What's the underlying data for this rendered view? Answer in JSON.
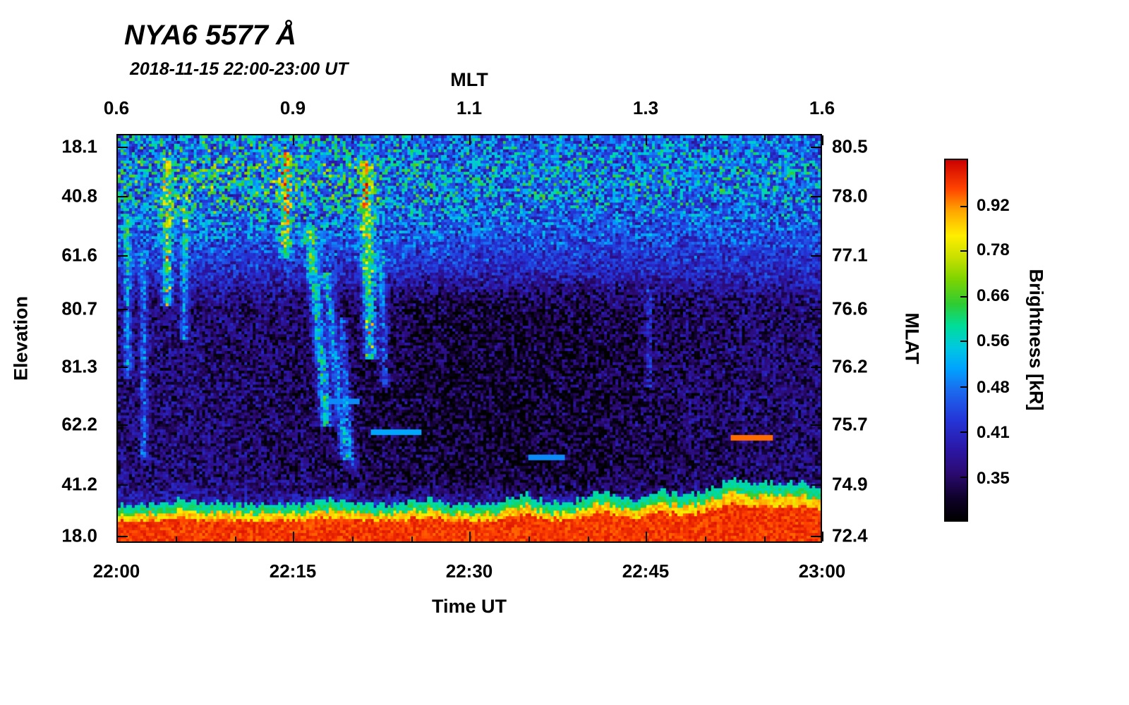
{
  "title": "NYA6 5577 Å",
  "subtitle": "2018-11-15 22:00-23:00 UT",
  "chart_data": {
    "type": "heatmap",
    "title": "NYA6 5577 Å",
    "subtitle": "2018-11-15 22:00-23:00 UT",
    "axes": {
      "bottom": {
        "label": "Time UT",
        "ticks": [
          {
            "label": "22:00",
            "pos": 0.0
          },
          {
            "label": "22:15",
            "pos": 0.25
          },
          {
            "label": "22:30",
            "pos": 0.5
          },
          {
            "label": "22:45",
            "pos": 0.75
          },
          {
            "label": "23:00",
            "pos": 1.0
          }
        ],
        "minor_divisions": 12
      },
      "top": {
        "label": "MLT",
        "ticks": [
          {
            "label": "0.6",
            "pos": 0.0
          },
          {
            "label": "0.9",
            "pos": 0.25
          },
          {
            "label": "1.1",
            "pos": 0.5
          },
          {
            "label": "1.3",
            "pos": 0.75
          },
          {
            "label": "1.6",
            "pos": 1.0
          }
        ],
        "minor_divisions": 12
      },
      "left": {
        "label": "Elevation",
        "ticks": [
          {
            "label": "18.1",
            "pos": 0.031
          },
          {
            "label": "40.8",
            "pos": 0.152
          },
          {
            "label": "61.6",
            "pos": 0.297
          },
          {
            "label": "80.7",
            "pos": 0.428
          },
          {
            "label": "81.3",
            "pos": 0.569
          },
          {
            "label": "62.2",
            "pos": 0.71
          },
          {
            "label": "41.2",
            "pos": 0.857
          },
          {
            "label": "18.0",
            "pos": 0.983
          }
        ]
      },
      "right": {
        "label": "MLAT",
        "ticks": [
          {
            "label": "80.5",
            "pos": 0.031
          },
          {
            "label": "78.0",
            "pos": 0.152
          },
          {
            "label": "77.1",
            "pos": 0.297
          },
          {
            "label": "76.6",
            "pos": 0.428
          },
          {
            "label": "76.2",
            "pos": 0.569
          },
          {
            "label": "75.7",
            "pos": 0.71
          },
          {
            "label": "74.9",
            "pos": 0.857
          },
          {
            "label": "72.4",
            "pos": 0.983
          }
        ]
      }
    },
    "colorbar": {
      "label": "Brightness [kR]",
      "scale": "log",
      "log_a": 0.777,
      "log_b": 0.935,
      "tick_labels": [
        {
          "label": "0.92",
          "pos": 0.13
        },
        {
          "label": "0.78",
          "pos": 0.252
        },
        {
          "label": "0.66",
          "pos": 0.379
        },
        {
          "label": "0.56",
          "pos": 0.503
        },
        {
          "label": "0.48",
          "pos": 0.631
        },
        {
          "label": "0.41",
          "pos": 0.755
        },
        {
          "label": "0.35",
          "pos": 0.881
        }
      ],
      "gradient_stops": [
        [
          0.0,
          "#000000"
        ],
        [
          0.06,
          "#0e0128"
        ],
        [
          0.13,
          "#2b0a70"
        ],
        [
          0.2,
          "#2b18a8"
        ],
        [
          0.28,
          "#2436d8"
        ],
        [
          0.36,
          "#1b6aee"
        ],
        [
          0.42,
          "#00a2ff"
        ],
        [
          0.48,
          "#00c8e0"
        ],
        [
          0.54,
          "#00dd99"
        ],
        [
          0.6,
          "#2ecc33"
        ],
        [
          0.67,
          "#7fd400"
        ],
        [
          0.73,
          "#c8e000"
        ],
        [
          0.79,
          "#ffee00"
        ],
        [
          0.86,
          "#ffa500"
        ],
        [
          0.92,
          "#ff4400"
        ],
        [
          1.0,
          "#cc0000"
        ]
      ]
    },
    "heatmap": {
      "grid": {
        "cols": 250,
        "rows": 145
      },
      "seed": 20181115,
      "base": 0.4,
      "noise": 0.1,
      "top_band": {
        "center": 0.1,
        "sigma": 0.12,
        "amp": 0.24
      },
      "top_band_boost": {
        "u": 0.18,
        "sigma": 0.16,
        "amp": 0.5
      },
      "mid_dark": {
        "w0": 0.3,
        "w1": 0.44,
        "w2": 0.84,
        "w3": 0.93,
        "u_center": 0.55,
        "u_sigma": 0.2,
        "amp": 0.05
      },
      "streaks": [
        {
          "u": 0.012,
          "w0": 0.2,
          "w1": 0.6,
          "width": 0.004,
          "amp": 0.2
        },
        {
          "u": 0.035,
          "w0": 0.28,
          "w1": 0.8,
          "width": 0.0035,
          "amp": 0.16
        },
        {
          "u": 0.068,
          "w0": 0.05,
          "w1": 0.42,
          "width": 0.005,
          "amp": 0.28,
          "spots": true
        },
        {
          "u": 0.093,
          "w0": 0.15,
          "w1": 0.5,
          "width": 0.004,
          "amp": 0.2
        },
        {
          "u": 0.238,
          "w0": 0.04,
          "w1": 0.3,
          "width": 0.005,
          "amp": 0.36,
          "spots": true
        },
        {
          "u": 0.272,
          "w0": 0.22,
          "w1": 0.72,
          "width": 0.006,
          "amp": 0.3,
          "tilt": 0.05
        },
        {
          "u": 0.296,
          "w0": 0.34,
          "w1": 0.8,
          "width": 0.005,
          "amp": 0.24,
          "tilt": 0.06
        },
        {
          "u": 0.318,
          "w0": 0.45,
          "w1": 0.82,
          "width": 0.004,
          "amp": 0.16,
          "tilt": 0.04
        },
        {
          "u": 0.352,
          "w0": 0.06,
          "w1": 0.55,
          "width": 0.006,
          "amp": 0.36,
          "spots": true,
          "tilt": 0.015
        },
        {
          "u": 0.374,
          "w0": 0.28,
          "w1": 0.62,
          "width": 0.004,
          "amp": 0.18,
          "tilt": 0.02
        },
        {
          "u": 0.757,
          "w0": 0.38,
          "w1": 0.62,
          "width": 0.003,
          "amp": 0.11
        }
      ],
      "dashes": [
        {
          "u0": 0.36,
          "u1": 0.43,
          "w": 0.735,
          "v": 0.52
        },
        {
          "u0": 0.585,
          "u1": 0.635,
          "w": 0.795,
          "v": 0.5
        },
        {
          "u0": 0.875,
          "u1": 0.935,
          "w": 0.745,
          "v": 0.95
        },
        {
          "u0": 0.3,
          "u1": 0.345,
          "w": 0.655,
          "v": 0.5
        }
      ],
      "bottom": {
        "base": 0.952,
        "right_rise": 0.01,
        "bumps": [
          {
            "u": 0.095,
            "depth": 0.008,
            "sigma": 0.02
          },
          {
            "u": 0.29,
            "depth": 0.007,
            "sigma": 0.02
          },
          {
            "u": 0.44,
            "depth": 0.008,
            "sigma": 0.02
          },
          {
            "u": 0.575,
            "depth": 0.014,
            "sigma": 0.02
          },
          {
            "u": 0.685,
            "depth": 0.016,
            "sigma": 0.018
          },
          {
            "u": 0.78,
            "depth": 0.014,
            "sigma": 0.02
          },
          {
            "u": 0.87,
            "depth": 0.024,
            "sigma": 0.03
          },
          {
            "u": 0.96,
            "depth": 0.026,
            "sigma": 0.05
          }
        ]
      }
    }
  }
}
